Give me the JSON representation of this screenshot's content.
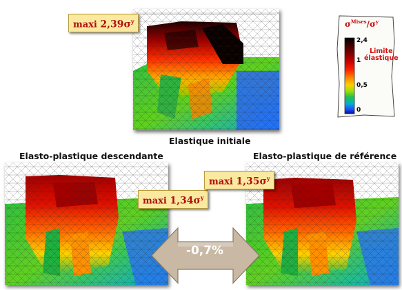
{
  "panels": {
    "initial": {
      "caption": "Elastique initiale",
      "maxi_prefix": "maxi ",
      "maxi_value": "2,39σ",
      "maxi_sup": "y"
    },
    "descendante": {
      "caption": "Elasto-plastique descendante",
      "maxi_prefix": "maxi ",
      "maxi_value": "1,34σ",
      "maxi_sup": "y"
    },
    "reference": {
      "caption": "Elasto-plastique de référence",
      "maxi_prefix": "maxi ",
      "maxi_value": "1,35σ",
      "maxi_sup": "y"
    }
  },
  "legend": {
    "title_main": "σ",
    "title_sup": "Mises",
    "title_sep": "/σ",
    "title_sup2": "y",
    "ticks": [
      "2,4",
      "1",
      "0,5",
      "0"
    ],
    "limite_line1": "Limite",
    "limite_line2": "élastique",
    "colors": [
      "#000000",
      "#4a0000",
      "#b00000",
      "#ff2000",
      "#ff8000",
      "#ffd000",
      "#a0e000",
      "#20c050",
      "#00b0d0",
      "#2050ff",
      "#0010a0"
    ]
  },
  "comparison": {
    "delta": "-0,7%",
    "arrow_color": "#c8b8a4"
  }
}
